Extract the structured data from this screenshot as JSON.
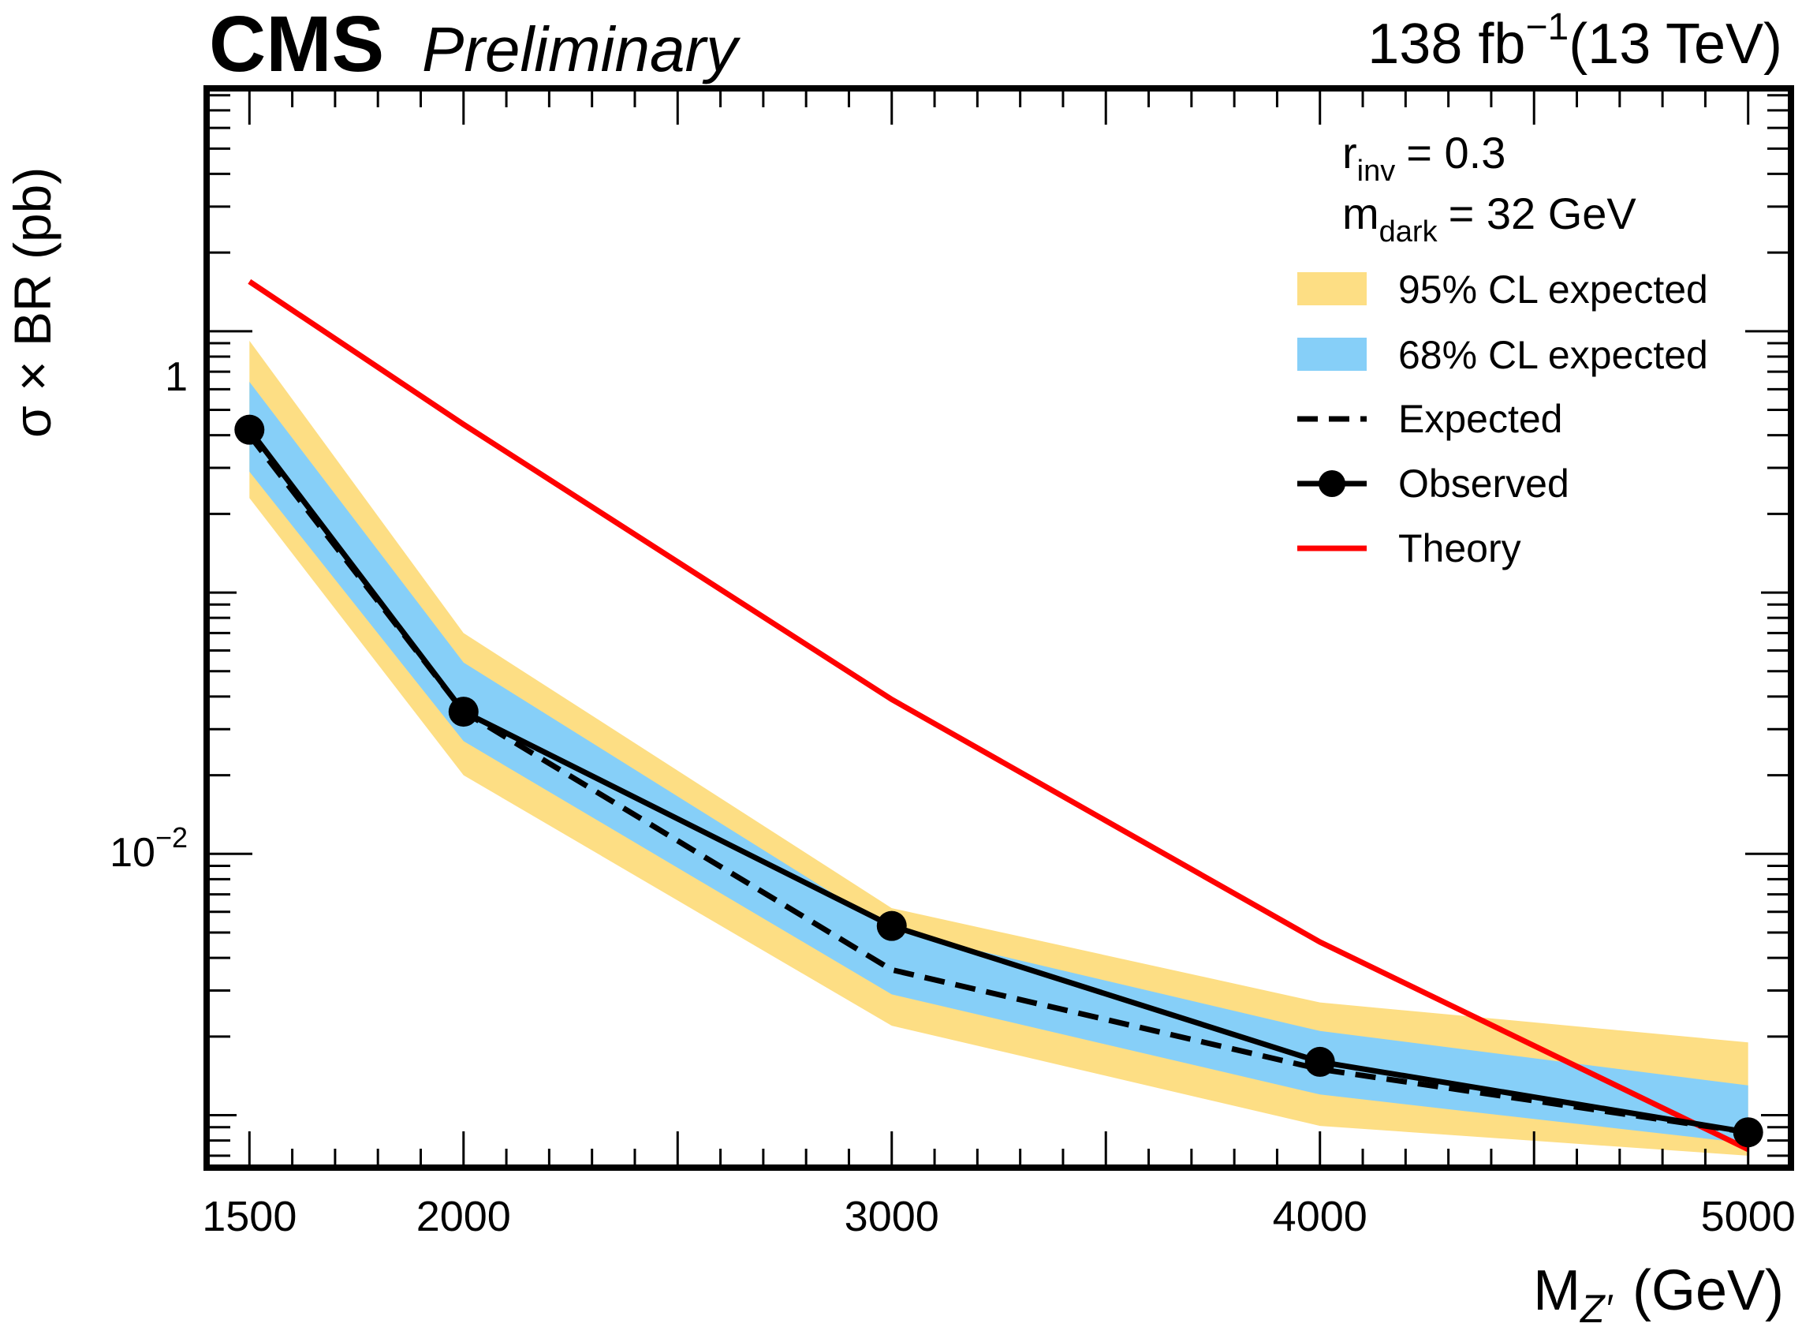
{
  "header": {
    "experiment": "CMS",
    "status": "Preliminary",
    "lumi_value": "138 fb",
    "lumi_exp": "−1",
    "energy": "(13 TeV)"
  },
  "info": {
    "rinv_symbol": "r",
    "rinv_sub": "inv",
    "rinv_value": "= 0.3",
    "mdark_symbol": "m",
    "mdark_sub": "dark",
    "mdark_value": "= 32 GeV"
  },
  "axes": {
    "xlabel_main": "M",
    "xlabel_sub": "Z′",
    "xlabel_unit": "(GeV)",
    "ylabel": "σ × BR (pb)",
    "y_tick_one": "1",
    "y_tick_pow_base": "10",
    "y_tick_pow_exp": "−2"
  },
  "legend": {
    "band95": "95% CL expected",
    "band68": "68% CL expected",
    "expected": "Expected",
    "observed": "Observed",
    "theory": "Theory"
  },
  "colors": {
    "band95": "#FDDE84",
    "band68": "#86CFF8",
    "theory": "#FF0000",
    "line": "#000000"
  },
  "chart_data": {
    "type": "line",
    "x": [
      1500,
      2000,
      3000,
      4000,
      5000
    ],
    "x_tick_labels": [
      "1500",
      "2000",
      "3000",
      "4000",
      "5000"
    ],
    "xlim": [
      1400,
      5100
    ],
    "ylim": [
      0.00063,
      8.5
    ],
    "yscale": "log",
    "series": [
      {
        "name": "Theory",
        "values": [
          1.55,
          0.44,
          0.039,
          0.0046,
          0.00074
        ]
      },
      {
        "name": "Observed",
        "values": [
          0.42,
          0.035,
          0.0053,
          0.0016,
          0.00086
        ]
      },
      {
        "name": "Expected",
        "values": [
          0.4,
          0.035,
          0.0036,
          0.0015,
          0.00086
        ]
      }
    ],
    "bands": [
      {
        "name": "95% CL expected",
        "low": [
          0.23,
          0.02,
          0.0022,
          0.00091,
          0.0007
        ],
        "high": [
          0.92,
          0.07,
          0.0062,
          0.0027,
          0.0019
        ]
      },
      {
        "name": "68% CL expected",
        "low": [
          0.29,
          0.027,
          0.0029,
          0.0012,
          0.00078
        ],
        "high": [
          0.64,
          0.054,
          0.0051,
          0.0021,
          0.0013
        ]
      }
    ],
    "title": "CMS Preliminary",
    "xlabel": "M_Z' (GeV)",
    "ylabel": "σ × BR (pb)"
  }
}
